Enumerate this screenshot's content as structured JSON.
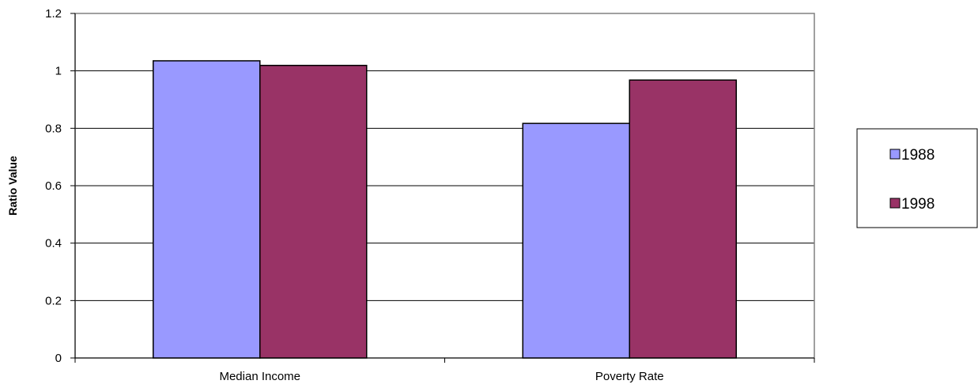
{
  "chart_data": {
    "type": "bar",
    "categories": [
      "Median Income",
      "Poverty Rate"
    ],
    "series": [
      {
        "name": "1988",
        "values": [
          1.035,
          0.817
        ],
        "color": "#9999ff"
      },
      {
        "name": "1998",
        "values": [
          1.019,
          0.968
        ],
        "color": "#993366"
      }
    ],
    "title": "",
    "xlabel": "",
    "ylabel": "Ratio Value",
    "ylim": [
      0,
      1.2
    ],
    "yticks": [
      "0",
      "0.2",
      "0.4",
      "0.6",
      "0.8",
      "1",
      "1.2"
    ],
    "grid": "horizontal",
    "legend_position": "right"
  }
}
